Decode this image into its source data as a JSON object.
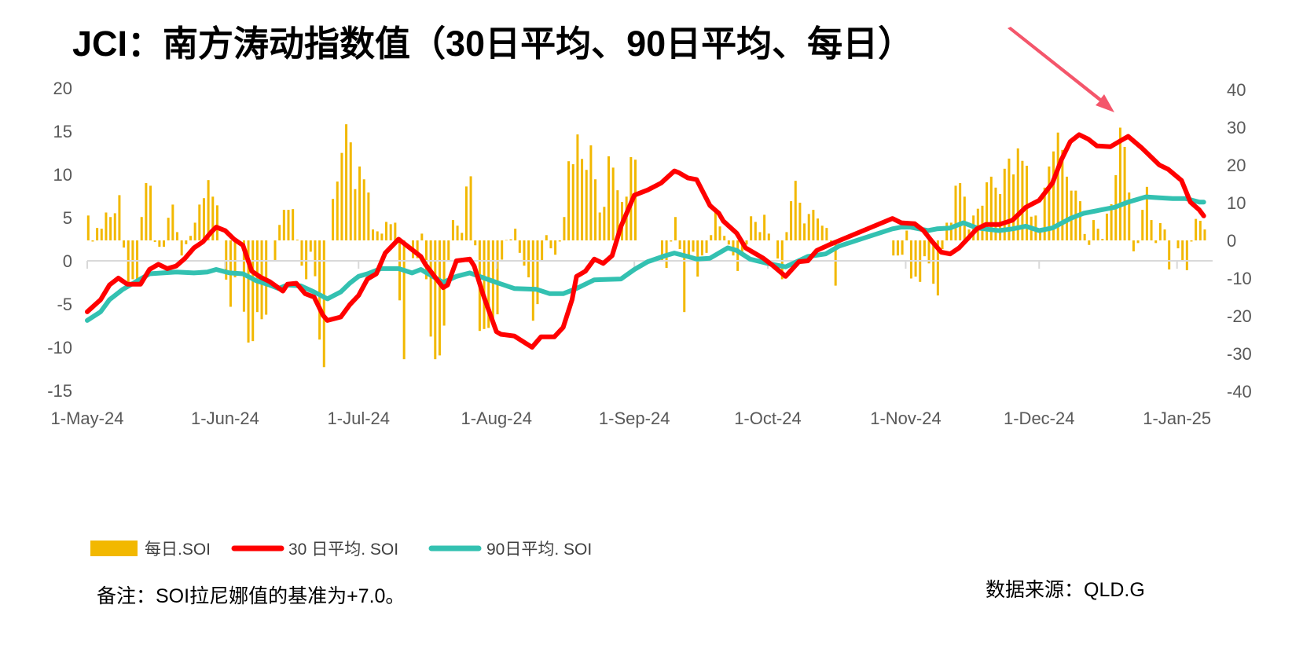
{
  "title": "JCI：南方涛动指数值（30日平均、90日平均、每日）",
  "note": "备注：SOI拉尼娜值的基准为+7.0。",
  "source": "数据来源：QLD.G",
  "chart_data": {
    "type": "bar+line",
    "title": "JCI：南方涛动指数值（30日平均、90日平均、每日）",
    "xlim": [
      "2024-05-01",
      "2025-01-09"
    ],
    "x_ticks": [
      {
        "date": "2024-05-01",
        "label": "1-May-24"
      },
      {
        "date": "2024-06-01",
        "label": "1-Jun-24"
      },
      {
        "date": "2024-07-01",
        "label": "1-Jul-24"
      },
      {
        "date": "2024-08-01",
        "label": "1-Aug-24"
      },
      {
        "date": "2024-09-01",
        "label": "1-Sep-24"
      },
      {
        "date": "2024-10-01",
        "label": "1-Oct-24"
      },
      {
        "date": "2024-11-01",
        "label": "1-Nov-24"
      },
      {
        "date": "2024-12-01",
        "label": "1-Dec-24"
      },
      {
        "date": "2025-01-01",
        "label": "1-Jan-25"
      }
    ],
    "y_left": {
      "ylim": [
        -15,
        20
      ],
      "ticks": [
        "20",
        "15",
        "10",
        "5",
        "0",
        "-5",
        "-10",
        "-15"
      ]
    },
    "y_right": {
      "ylim": [
        -40,
        40
      ],
      "ticks": [
        "40",
        "30",
        "20",
        "10",
        "0",
        "-10",
        "-20",
        "-30",
        "-40"
      ]
    },
    "grid": false,
    "legend_position": "bottom-left",
    "colors": {
      "daily": "#F2B800",
      "avg30": "#FF0000",
      "avg90": "#33C1B1",
      "arrow": "#F4566B",
      "axis": "#D9D9D9"
    },
    "annotation": "arrow pointing to late-December peak",
    "series": [
      {
        "name": "每日.SOI",
        "kind": "bar",
        "axis": "right",
        "daily_by_month": {
          "2024-05": [
            6.6,
            -0.3,
            3.3,
            3.1,
            7.4,
            6.2,
            7.2,
            12.0,
            -1.9,
            -11.0,
            -10.3,
            -10.5,
            6.2,
            15.2,
            14.5,
            -0.4,
            -1.7,
            -1.7,
            6.0,
            9.5,
            2.2,
            -4.0,
            -1.0,
            1.2,
            4.7,
            9.5,
            11.2,
            16.0,
            11.6,
            9.3,
            null
          ],
          "2024-06": [
            -10.4,
            -17.6,
            -9.8,
            null,
            -18.9,
            -27.1,
            -26.7,
            -19.0,
            -20.9,
            -19.7,
            null,
            -5.2,
            4.1,
            8.1,
            8.1,
            8.3,
            0.2,
            -6.7,
            -10.3,
            -3.0,
            -9.5,
            -26.3,
            -33.6,
            null,
            11.0,
            15.6,
            23.2,
            30.8,
            26.0,
            13.6
          ],
          "2024-07": [
            19.6,
            16.2,
            12.7,
            2.9,
            2.4,
            1.8,
            4.9,
            4.3,
            4.7,
            -15.9,
            -31.5,
            null,
            -4.7,
            -4.7,
            1.8,
            -10.3,
            -25.5,
            -31.5,
            -30.5,
            -22.6,
            -5.2,
            5.4,
            3.9,
            2.0,
            14.3,
            17.0,
            -1.3,
            -24.0,
            -23.5,
            -23.2,
            -22.8
          ],
          "2024-08": [
            -19.6,
            -5.1,
            0.1,
            0.3,
            3.1,
            -3.3,
            -6.7,
            -9.8,
            -21.3,
            -16.9,
            -5.4,
            1.4,
            -2.1,
            -3.8,
            -0.3,
            6.2,
            21.0,
            20.2,
            28.1,
            21.6,
            18.7,
            25.2,
            16.2,
            7.4,
            8.9,
            22.3,
            19.3,
            13.3,
            10.2,
            11.6,
            22.1
          ],
          "2024-09": [
            21.4,
            null,
            null,
            null,
            null,
            null,
            -5.4,
            -7.3,
            -0.3,
            6.2,
            -2.3,
            -19.0,
            -4.0,
            -3.0,
            -9.6,
            -4.0,
            -3.3,
            1.4,
            7.4,
            3.7,
            1.2,
            -1.1,
            -4.0,
            -8.1,
            -3.0,
            -1.1,
            6.4,
            4.9,
            2.2,
            6.8
          ],
          "2024-10": [
            1.8,
            null,
            -4.8,
            -10.3,
            2.2,
            10.4,
            15.8,
            10.0,
            4.5,
            7.0,
            8.1,
            5.8,
            3.9,
            3.3,
            -0.5,
            -12.0,
            null,
            null,
            null,
            null,
            null,
            null,
            null,
            null,
            null,
            null,
            null,
            null,
            -4.0,
            -4.0,
            -3.8
          ],
          "2024-11": [
            2.6,
            -10.1,
            -9.6,
            -11.0,
            -4.2,
            -6.1,
            -11.5,
            -14.6,
            -2.3,
            4.7,
            4.7,
            14.5,
            15.2,
            11.6,
            2.9,
            6.6,
            8.4,
            9.2,
            15.4,
            16.9,
            14.0,
            12.3,
            19.0,
            21.7,
            17.5,
            24.4,
            21.1,
            19.8,
            6.3,
            6.6
          ],
          "2024-12": [
            2.1,
            14.0,
            19.6,
            23.6,
            28.6,
            24.0,
            16.9,
            13.2,
            13.2,
            10.4,
            1.7,
            -1.2,
            5.4,
            3.1,
            0.4,
            7.1,
            9.6,
            17.3,
            29.9,
            24.8,
            12.7,
            -2.9,
            -0.7,
            8.1,
            14.2,
            5.4,
            -0.7,
            4.6,
            2.9,
            -7.7,
            null
          ],
          "2025-01": [
            -2.1,
            -5.6,
            -7.9,
            -0.3,
            5.7,
            5.2,
            2.9
          ]
        }
      },
      {
        "name": "30 日平均. SOI",
        "kind": "line",
        "axis": "left",
        "points": [
          [
            "2024-05-01",
            -5.9
          ],
          [
            "2024-05-04",
            -4.5
          ],
          [
            "2024-05-06",
            -2.8
          ],
          [
            "2024-05-08",
            -2.0
          ],
          [
            "2024-05-10",
            -2.7
          ],
          [
            "2024-05-13",
            -2.7
          ],
          [
            "2024-05-15",
            -1.0
          ],
          [
            "2024-05-17",
            -0.4
          ],
          [
            "2024-05-19",
            -0.9
          ],
          [
            "2024-05-21",
            -0.6
          ],
          [
            "2024-05-23",
            0.3
          ],
          [
            "2024-05-25",
            1.5
          ],
          [
            "2024-05-27",
            2.2
          ],
          [
            "2024-05-29",
            3.4
          ],
          [
            "2024-05-30",
            3.9
          ],
          [
            "2024-06-01",
            3.5
          ],
          [
            "2024-06-03",
            2.5
          ],
          [
            "2024-06-05",
            1.8
          ],
          [
            "2024-06-07",
            -1.2
          ],
          [
            "2024-06-09",
            -1.9
          ],
          [
            "2024-06-11",
            -2.4
          ],
          [
            "2024-06-14",
            -3.5
          ],
          [
            "2024-06-15",
            -2.7
          ],
          [
            "2024-06-17",
            -2.6
          ],
          [
            "2024-06-19",
            -3.8
          ],
          [
            "2024-06-21",
            -4.2
          ],
          [
            "2024-06-23",
            -6.3
          ],
          [
            "2024-06-24",
            -6.9
          ],
          [
            "2024-06-27",
            -6.5
          ],
          [
            "2024-06-29",
            -5.1
          ],
          [
            "2024-07-01",
            -4.0
          ],
          [
            "2024-07-03",
            -2.1
          ],
          [
            "2024-07-05",
            -1.5
          ],
          [
            "2024-07-07",
            0.9
          ],
          [
            "2024-07-10",
            2.5
          ],
          [
            "2024-07-12",
            1.7
          ],
          [
            "2024-07-15",
            0.5
          ],
          [
            "2024-07-16",
            -0.4
          ],
          [
            "2024-07-20",
            -3.1
          ],
          [
            "2024-07-21",
            -2.8
          ],
          [
            "2024-07-23",
            0.0
          ],
          [
            "2024-07-26",
            0.2
          ],
          [
            "2024-07-27",
            -0.6
          ],
          [
            "2024-07-29",
            -3.9
          ],
          [
            "2024-08-01",
            -8.2
          ],
          [
            "2024-08-02",
            -8.5
          ],
          [
            "2024-08-05",
            -8.7
          ],
          [
            "2024-08-09",
            -10.0
          ],
          [
            "2024-08-11",
            -8.8
          ],
          [
            "2024-08-14",
            -8.8
          ],
          [
            "2024-08-16",
            -7.7
          ],
          [
            "2024-08-18",
            -4.5
          ],
          [
            "2024-08-19",
            -1.8
          ],
          [
            "2024-08-21",
            -1.2
          ],
          [
            "2024-08-23",
            0.2
          ],
          [
            "2024-08-25",
            -0.3
          ],
          [
            "2024-08-27",
            0.6
          ],
          [
            "2024-08-29",
            4.0
          ],
          [
            "2024-09-01",
            7.6
          ],
          [
            "2024-09-04",
            8.2
          ],
          [
            "2024-09-07",
            9.0
          ],
          [
            "2024-09-10",
            10.4
          ],
          [
            "2024-09-11",
            10.2
          ],
          [
            "2024-09-13",
            9.6
          ],
          [
            "2024-09-15",
            9.4
          ],
          [
            "2024-09-18",
            6.4
          ],
          [
            "2024-09-20",
            5.5
          ],
          [
            "2024-09-21",
            4.6
          ],
          [
            "2024-09-24",
            3.2
          ],
          [
            "2024-09-26",
            1.5
          ],
          [
            "2024-09-28",
            0.9
          ],
          [
            "2024-09-30",
            0.3
          ],
          [
            "2024-10-02",
            -0.5
          ],
          [
            "2024-10-05",
            -1.8
          ],
          [
            "2024-10-08",
            -0.1
          ],
          [
            "2024-10-10",
            0.0
          ],
          [
            "2024-10-12",
            1.2
          ],
          [
            "2024-10-15",
            1.9
          ],
          [
            "2024-10-29",
            4.9
          ],
          [
            "2024-10-31",
            4.4
          ],
          [
            "2024-11-03",
            4.3
          ],
          [
            "2024-11-05",
            3.5
          ],
          [
            "2024-11-07",
            2.2
          ],
          [
            "2024-11-09",
            1.0
          ],
          [
            "2024-11-11",
            0.8
          ],
          [
            "2024-11-13",
            1.5
          ],
          [
            "2024-11-17",
            3.7
          ],
          [
            "2024-11-19",
            4.2
          ],
          [
            "2024-11-22",
            4.2
          ],
          [
            "2024-11-25",
            4.7
          ],
          [
            "2024-11-28",
            6.2
          ],
          [
            "2024-12-01",
            7.0
          ],
          [
            "2024-12-04",
            9.0
          ],
          [
            "2024-12-06",
            11.7
          ],
          [
            "2024-12-08",
            13.8
          ],
          [
            "2024-12-10",
            14.6
          ],
          [
            "2024-12-12",
            14.1
          ],
          [
            "2024-12-14",
            13.3
          ],
          [
            "2024-12-17",
            13.2
          ],
          [
            "2024-12-19",
            13.8
          ],
          [
            "2024-12-21",
            14.4
          ],
          [
            "2024-12-24",
            13.1
          ],
          [
            "2024-12-25",
            12.6
          ],
          [
            "2024-12-28",
            11.1
          ],
          [
            "2024-12-30",
            10.6
          ],
          [
            "2025-01-02",
            9.3
          ],
          [
            "2025-01-04",
            6.8
          ],
          [
            "2025-01-06",
            5.9
          ],
          [
            "2025-01-07",
            5.2
          ]
        ]
      },
      {
        "name": "90日平均. SOI",
        "kind": "line",
        "axis": "left",
        "points": [
          [
            "2024-05-01",
            -6.9
          ],
          [
            "2024-05-04",
            -5.9
          ],
          [
            "2024-05-06",
            -4.5
          ],
          [
            "2024-05-09",
            -3.3
          ],
          [
            "2024-05-12",
            -2.4
          ],
          [
            "2024-05-15",
            -1.5
          ],
          [
            "2024-05-18",
            -1.4
          ],
          [
            "2024-05-21",
            -1.3
          ],
          [
            "2024-05-25",
            -1.4
          ],
          [
            "2024-05-28",
            -1.3
          ],
          [
            "2024-05-30",
            -1.0
          ],
          [
            "2024-06-02",
            -1.4
          ],
          [
            "2024-06-05",
            -1.5
          ],
          [
            "2024-06-08",
            -2.3
          ],
          [
            "2024-06-11",
            -2.8
          ],
          [
            "2024-06-13",
            -3.2
          ],
          [
            "2024-06-15",
            -2.8
          ],
          [
            "2024-06-18",
            -2.9
          ],
          [
            "2024-06-21",
            -3.6
          ],
          [
            "2024-06-24",
            -4.4
          ],
          [
            "2024-06-27",
            -3.6
          ],
          [
            "2024-06-29",
            -2.6
          ],
          [
            "2024-07-01",
            -1.8
          ],
          [
            "2024-07-03",
            -1.5
          ],
          [
            "2024-07-06",
            -0.9
          ],
          [
            "2024-07-10",
            -0.9
          ],
          [
            "2024-07-13",
            -1.4
          ],
          [
            "2024-07-15",
            -1.0
          ],
          [
            "2024-07-20",
            -2.5
          ],
          [
            "2024-07-23",
            -1.8
          ],
          [
            "2024-07-26",
            -1.4
          ],
          [
            "2024-08-01",
            -2.5
          ],
          [
            "2024-08-05",
            -3.2
          ],
          [
            "2024-08-10",
            -3.3
          ],
          [
            "2024-08-13",
            -3.8
          ],
          [
            "2024-08-16",
            -3.8
          ],
          [
            "2024-08-19",
            -3.2
          ],
          [
            "2024-08-23",
            -2.2
          ],
          [
            "2024-08-29",
            -2.1
          ],
          [
            "2024-09-01",
            -1.0
          ],
          [
            "2024-09-04",
            -0.1
          ],
          [
            "2024-09-08",
            0.6
          ],
          [
            "2024-09-10",
            0.9
          ],
          [
            "2024-09-13",
            0.5
          ],
          [
            "2024-09-15",
            0.2
          ],
          [
            "2024-09-18",
            0.3
          ],
          [
            "2024-09-22",
            1.5
          ],
          [
            "2024-09-24",
            1.2
          ],
          [
            "2024-09-27",
            0.2
          ],
          [
            "2024-10-01",
            -0.3
          ],
          [
            "2024-10-05",
            -0.7
          ],
          [
            "2024-10-10",
            0.5
          ],
          [
            "2024-10-14",
            0.8
          ],
          [
            "2024-10-17",
            1.7
          ],
          [
            "2024-10-23",
            2.7
          ],
          [
            "2024-10-29",
            3.7
          ],
          [
            "2024-10-31",
            3.9
          ],
          [
            "2024-11-02",
            3.9
          ],
          [
            "2024-11-06",
            3.5
          ],
          [
            "2024-11-08",
            3.7
          ],
          [
            "2024-11-11",
            3.8
          ],
          [
            "2024-11-14",
            4.4
          ],
          [
            "2024-11-17",
            3.8
          ],
          [
            "2024-11-22",
            3.5
          ],
          [
            "2024-11-25",
            3.7
          ],
          [
            "2024-11-28",
            4.0
          ],
          [
            "2024-12-01",
            3.5
          ],
          [
            "2024-12-04",
            3.8
          ],
          [
            "2024-12-08",
            4.9
          ],
          [
            "2024-12-11",
            5.5
          ],
          [
            "2024-12-15",
            5.9
          ],
          [
            "2024-12-18",
            6.2
          ],
          [
            "2024-12-21",
            6.8
          ],
          [
            "2024-12-25",
            7.4
          ],
          [
            "2024-12-28",
            7.3
          ],
          [
            "2024-12-31",
            7.2
          ],
          [
            "2025-01-03",
            7.2
          ],
          [
            "2025-01-06",
            6.8
          ],
          [
            "2025-01-07",
            6.8
          ]
        ]
      }
    ]
  }
}
